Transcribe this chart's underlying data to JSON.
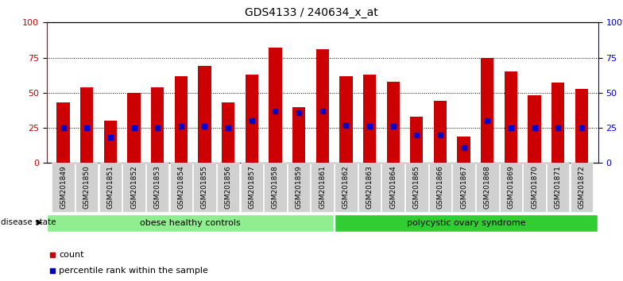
{
  "title": "GDS4133 / 240634_x_at",
  "samples": [
    "GSM201849",
    "GSM201850",
    "GSM201851",
    "GSM201852",
    "GSM201853",
    "GSM201854",
    "GSM201855",
    "GSM201856",
    "GSM201857",
    "GSM201858",
    "GSM201859",
    "GSM201861",
    "GSM201862",
    "GSM201863",
    "GSM201864",
    "GSM201865",
    "GSM201866",
    "GSM201867",
    "GSM201868",
    "GSM201869",
    "GSM201870",
    "GSM201871",
    "GSM201872"
  ],
  "counts": [
    43,
    54,
    30,
    50,
    54,
    62,
    69,
    43,
    63,
    82,
    40,
    81,
    62,
    63,
    58,
    33,
    44,
    19,
    75,
    65,
    48,
    57,
    53
  ],
  "percentiles": [
    25,
    25,
    18,
    25,
    25,
    26,
    26,
    25,
    30,
    37,
    36,
    37,
    27,
    26,
    26,
    20,
    20,
    11,
    30,
    25,
    25,
    25,
    25
  ],
  "groups": [
    {
      "label": "obese healthy controls",
      "start": 0,
      "end": 12,
      "color": "#90EE90"
    },
    {
      "label": "polycystic ovary syndrome",
      "start": 12,
      "end": 23,
      "color": "#32CD32"
    }
  ],
  "bar_color": "#CC0000",
  "percentile_color": "#0000CC",
  "ylim": [
    0,
    100
  ],
  "yticks": [
    0,
    25,
    50,
    75,
    100
  ],
  "legend_count_label": "count",
  "legend_percentile_label": "percentile rank within the sample",
  "disease_state_label": "disease state",
  "title_fontsize": 10,
  "bar_width": 0.55
}
